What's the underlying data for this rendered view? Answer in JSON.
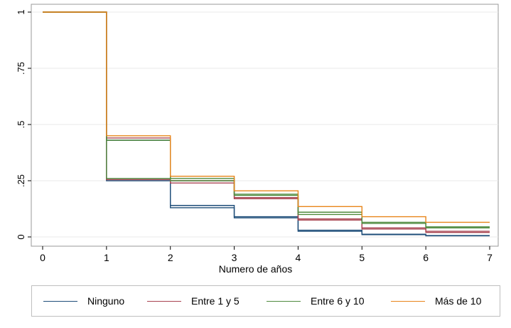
{
  "chart_data": {
    "type": "line",
    "step": true,
    "xlabel": "Numero de años",
    "ylabel": "",
    "xlim": [
      0,
      7
    ],
    "ylim": [
      0,
      1
    ],
    "xticks": [
      "0",
      "1",
      "2",
      "3",
      "4",
      "5",
      "6",
      "7"
    ],
    "yticks": [
      "0",
      ".25",
      ".5",
      ".75",
      "1"
    ],
    "grid": true,
    "legend_position": "bottom",
    "x": [
      0,
      1,
      2,
      3,
      4,
      5,
      6,
      7
    ],
    "series": [
      {
        "name": "Ninguno",
        "color": "#1f4e79",
        "lines": [
          [
            1.0,
            0.43,
            0.13,
            0.085,
            0.025,
            0.01,
            0.005
          ],
          [
            1.0,
            0.25,
            0.14,
            0.09,
            0.03,
            0.012,
            0.006
          ]
        ]
      },
      {
        "name": "Entre 1 y 5",
        "color": "#a84350",
        "lines": [
          [
            1.0,
            0.44,
            0.24,
            0.17,
            0.075,
            0.035,
            0.02
          ],
          [
            1.0,
            0.255,
            0.25,
            0.175,
            0.08,
            0.04,
            0.025
          ]
        ]
      },
      {
        "name": "Entre 6 y 10",
        "color": "#4f8a3e",
        "lines": [
          [
            1.0,
            0.43,
            0.25,
            0.185,
            0.1,
            0.06,
            0.04
          ],
          [
            1.0,
            0.26,
            0.26,
            0.19,
            0.11,
            0.065,
            0.045
          ]
        ]
      },
      {
        "name": "Más de 10",
        "color": "#e8851a",
        "lines": [
          [
            1.0,
            0.45,
            0.27,
            0.205,
            0.135,
            0.09,
            0.065
          ]
        ]
      }
    ]
  }
}
